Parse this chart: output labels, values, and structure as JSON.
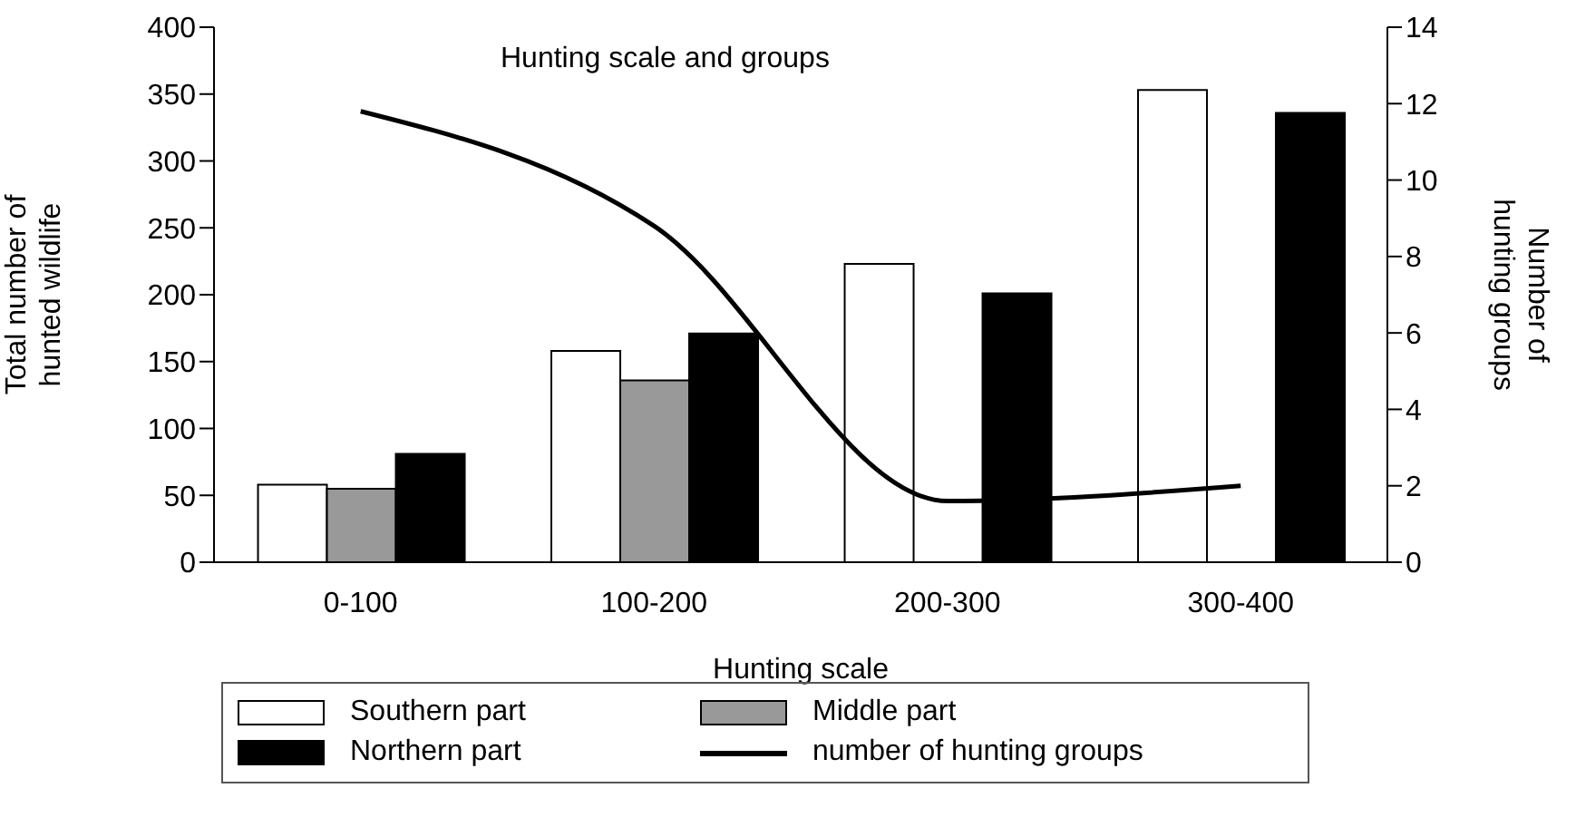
{
  "chart_data": {
    "type": "bar",
    "title": "Hunting scale and groups",
    "xlabel": "Hunting scale",
    "ylabel": "Total number of hunted wildlife",
    "y2label": "Number of hunting groups",
    "categories": [
      "0-100",
      "100-200",
      "200-300",
      "300-400"
    ],
    "series": [
      {
        "name": "Southern part",
        "color": "#ffffff",
        "values": [
          58,
          158,
          223,
          353
        ]
      },
      {
        "name": "Middle part",
        "color": "#999999",
        "values": [
          55,
          136,
          null,
          null
        ]
      },
      {
        "name": "Northern part",
        "color": "#000000",
        "values": [
          81,
          171,
          201,
          336
        ]
      },
      {
        "name": "number of hunting groups",
        "type": "line",
        "axis": "y2",
        "color": "#000000",
        "values": [
          11.8,
          8.8,
          1.6,
          2.0
        ]
      }
    ],
    "ylim": [
      0,
      400
    ],
    "yticks": [
      0,
      50,
      100,
      150,
      200,
      250,
      300,
      350,
      400
    ],
    "y2lim": [
      0,
      14
    ],
    "y2ticks": [
      0,
      2,
      4,
      6,
      8,
      10,
      12,
      14
    ],
    "legend": "bottom",
    "marker": "none",
    "line_style": "solid"
  }
}
